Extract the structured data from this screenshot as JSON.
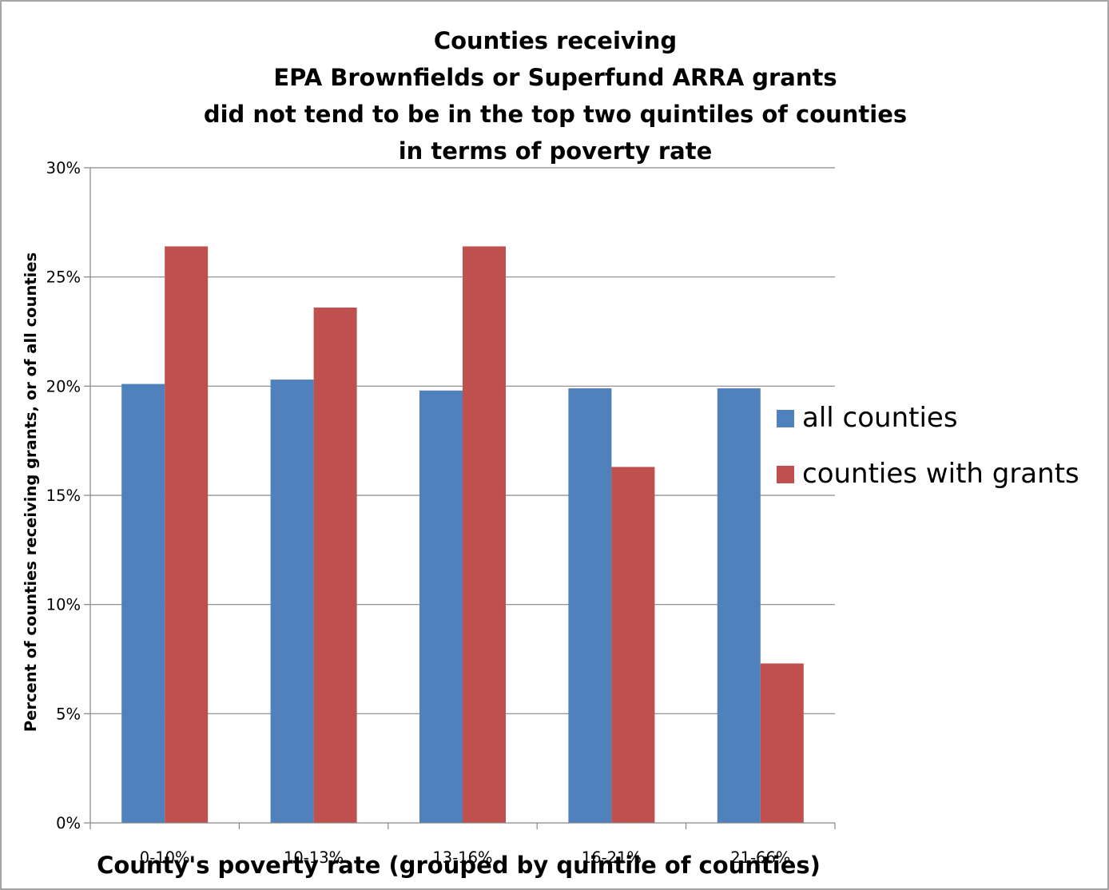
{
  "chart_data": {
    "type": "bar",
    "title_lines": [
      "Counties receiving",
      "EPA Brownfields or Superfund ARRA grants",
      "did not tend to be in the top two quintiles of counties",
      "in terms of poverty rate"
    ],
    "xlabel": "County's poverty rate (grouped by quintile of counties)",
    "ylabel": "Percent of counties receiving grants, or of all counties",
    "categories": [
      "0-10%",
      "10-13%",
      "13-16%",
      "16-21%",
      "21-66%"
    ],
    "ylim": [
      0,
      30
    ],
    "y_ticks": [
      {
        "value": 0,
        "label": "0%"
      },
      {
        "value": 5,
        "label": "5%"
      },
      {
        "value": 10,
        "label": "10%"
      },
      {
        "value": 15,
        "label": "15%"
      },
      {
        "value": 20,
        "label": "20%"
      },
      {
        "value": 25,
        "label": "25%"
      },
      {
        "value": 30,
        "label": "30%"
      }
    ],
    "grid": true,
    "legend_position": "right",
    "series": [
      {
        "name": "all counties",
        "color": "#4F81BD",
        "values": [
          20.1,
          20.3,
          19.8,
          19.9,
          19.9
        ]
      },
      {
        "name": "counties with grants",
        "color": "#C0504D",
        "values": [
          26.4,
          23.6,
          26.4,
          16.3,
          7.3
        ]
      }
    ]
  }
}
